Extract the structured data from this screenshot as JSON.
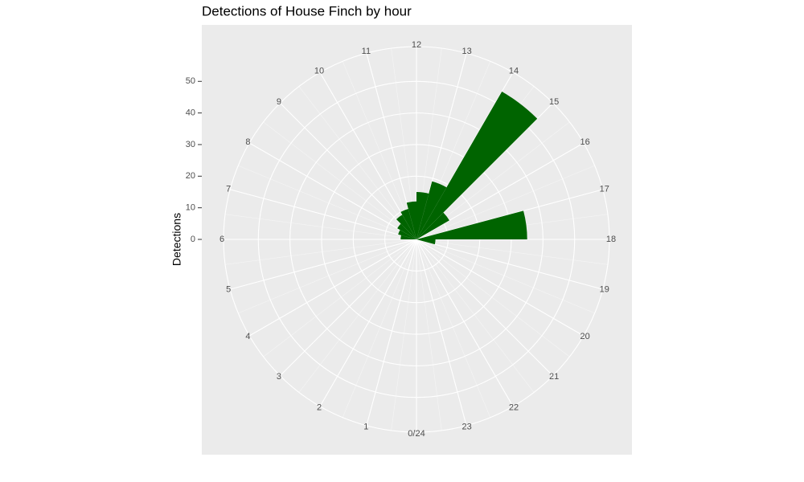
{
  "chart_data": {
    "type": "bar",
    "coord": "polar",
    "title": "Detections of House Finch by hour",
    "ylabel": "Detections",
    "bins": [
      0,
      1,
      2,
      3,
      4,
      5,
      6,
      7,
      8,
      9,
      10,
      11,
      12,
      13,
      14,
      15,
      16,
      17,
      18,
      19,
      20,
      21,
      22,
      23,
      24
    ],
    "values": [
      0,
      0,
      0,
      0,
      0,
      0,
      5,
      6,
      7,
      9,
      10,
      12,
      15,
      19,
      54,
      12,
      0,
      35,
      6,
      0,
      0,
      0,
      0,
      0,
      0
    ],
    "color": "#006400",
    "xlim": [
      0,
      24
    ],
    "xticks": [
      {
        "value": 0,
        "label": "0/24"
      },
      1,
      2,
      3,
      4,
      5,
      6,
      7,
      8,
      9,
      10,
      11,
      12,
      13,
      14,
      15,
      16,
      17,
      18,
      19,
      20,
      21,
      22,
      23
    ],
    "ylim": [
      0,
      61
    ],
    "yticks": [
      0,
      10,
      20,
      30,
      40,
      50
    ],
    "grid": true
  }
}
